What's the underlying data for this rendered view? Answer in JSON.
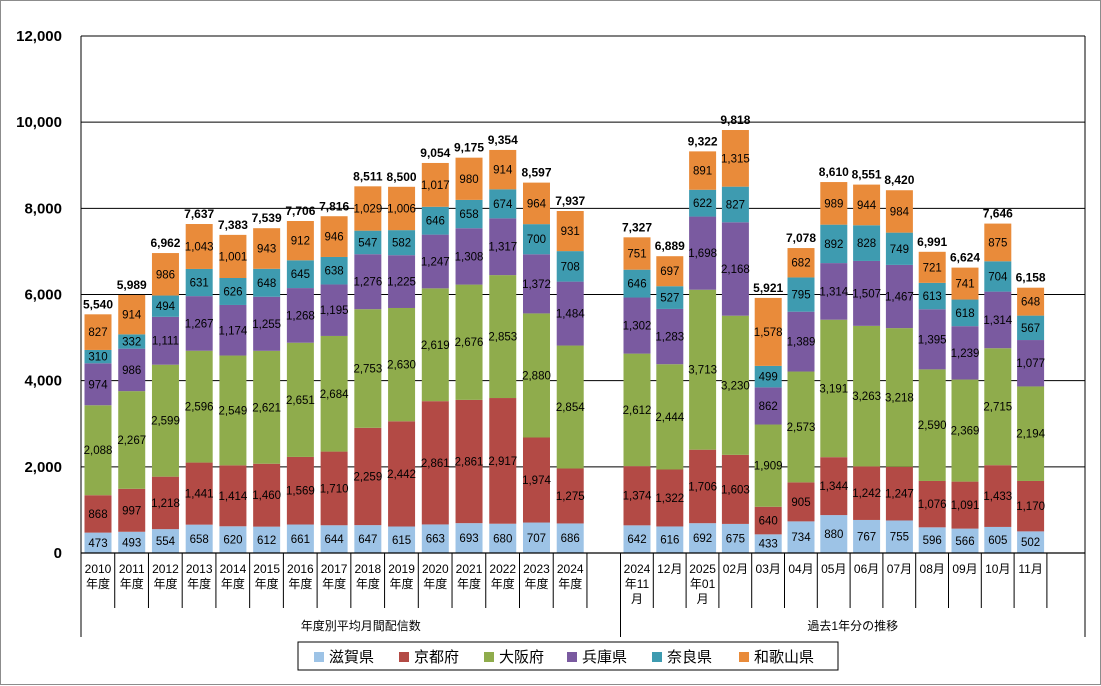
{
  "chart_data": {
    "type": "bar",
    "stacked": true,
    "ylim": [
      0,
      12000
    ],
    "yticks": [
      0,
      2000,
      4000,
      6000,
      8000,
      10000,
      12000
    ],
    "ytick_labels": [
      "0",
      "2,000",
      "4,000",
      "6,000",
      "8,000",
      "10,000",
      "12,000"
    ],
    "grid": true,
    "legend_position": "bottom",
    "categories": [
      [
        "2010",
        "年度"
      ],
      [
        "2011",
        "年度"
      ],
      [
        "2012",
        "年度"
      ],
      [
        "2013",
        "年度"
      ],
      [
        "2014",
        "年度"
      ],
      [
        "2015",
        "年度"
      ],
      [
        "2016",
        "年度"
      ],
      [
        "2017",
        "年度"
      ],
      [
        "2018",
        "年度"
      ],
      [
        "2019",
        "年度"
      ],
      [
        "2020",
        "年度"
      ],
      [
        "2021",
        "年度"
      ],
      [
        "2022",
        "年度"
      ],
      [
        "2023",
        "年度"
      ],
      [
        "2024",
        "年度"
      ],
      [
        "2024",
        "年11",
        "月"
      ],
      [
        "12月"
      ],
      [
        "2025",
        "年01",
        "月"
      ],
      [
        "02月"
      ],
      [
        "03月"
      ],
      [
        "04月"
      ],
      [
        "05月"
      ],
      [
        "06月"
      ],
      [
        "07月"
      ],
      [
        "08月"
      ],
      [
        "09月"
      ],
      [
        "10月"
      ],
      [
        "11月"
      ]
    ],
    "groups": [
      {
        "label": "年度別平均月間配信数",
        "start": 0,
        "end": 14
      },
      {
        "label": "過去1年分の推移",
        "start": 15,
        "end": 27
      }
    ],
    "series": [
      {
        "name": "滋賀県",
        "color": "#9dc3e6",
        "values": [
          473,
          493,
          554,
          658,
          620,
          612,
          661,
          644,
          647,
          615,
          663,
          693,
          680,
          707,
          686,
          642,
          616,
          692,
          675,
          433,
          734,
          880,
          767,
          755,
          596,
          566,
          605,
          502
        ]
      },
      {
        "name": "京都府",
        "color": "#b34a45",
        "values": [
          868,
          997,
          1218,
          1441,
          1414,
          1460,
          1569,
          1710,
          2259,
          2442,
          2861,
          2861,
          2917,
          1974,
          1275,
          1374,
          1322,
          1706,
          1603,
          640,
          905,
          1344,
          1242,
          1247,
          1076,
          1091,
          1433,
          1170
        ]
      },
      {
        "name": "大阪府",
        "color": "#8fac4c",
        "values": [
          2088,
          2267,
          2599,
          2596,
          2549,
          2621,
          2651,
          2684,
          2753,
          2630,
          2619,
          2676,
          2853,
          2880,
          2854,
          2612,
          2444,
          3713,
          3230,
          1909,
          2573,
          3191,
          3263,
          3218,
          2590,
          2369,
          2715,
          2194
        ]
      },
      {
        "name": "兵庫県",
        "color": "#7a5aa0",
        "values": [
          974,
          986,
          1111,
          1267,
          1174,
          1255,
          1268,
          1195,
          1276,
          1225,
          1247,
          1308,
          1317,
          1372,
          1484,
          1302,
          1283,
          1698,
          2168,
          862,
          1389,
          1314,
          1507,
          1467,
          1395,
          1239,
          1314,
          1077
        ]
      },
      {
        "name": "奈良県",
        "color": "#3e9bb0",
        "values": [
          310,
          332,
          494,
          631,
          626,
          648,
          645,
          638,
          547,
          582,
          646,
          658,
          674,
          700,
          708,
          646,
          527,
          622,
          827,
          499,
          795,
          892,
          828,
          749,
          613,
          618,
          704,
          567
        ]
      },
      {
        "name": "和歌山県",
        "color": "#e98b3a",
        "values": [
          827,
          914,
          986,
          1043,
          1001,
          943,
          912,
          946,
          1029,
          1006,
          1017,
          980,
          914,
          964,
          931,
          751,
          697,
          891,
          1315,
          1578,
          682,
          989,
          944,
          984,
          721,
          741,
          875,
          648
        ]
      }
    ],
    "totals": [
      5540,
      5989,
      6962,
      7637,
      7383,
      7539,
      7706,
      7816,
      8511,
      8500,
      9054,
      9175,
      9354,
      8597,
      7937,
      7327,
      6889,
      9322,
      9818,
      5921,
      7078,
      8610,
      8551,
      8420,
      6991,
      6624,
      7646,
      6158
    ]
  }
}
